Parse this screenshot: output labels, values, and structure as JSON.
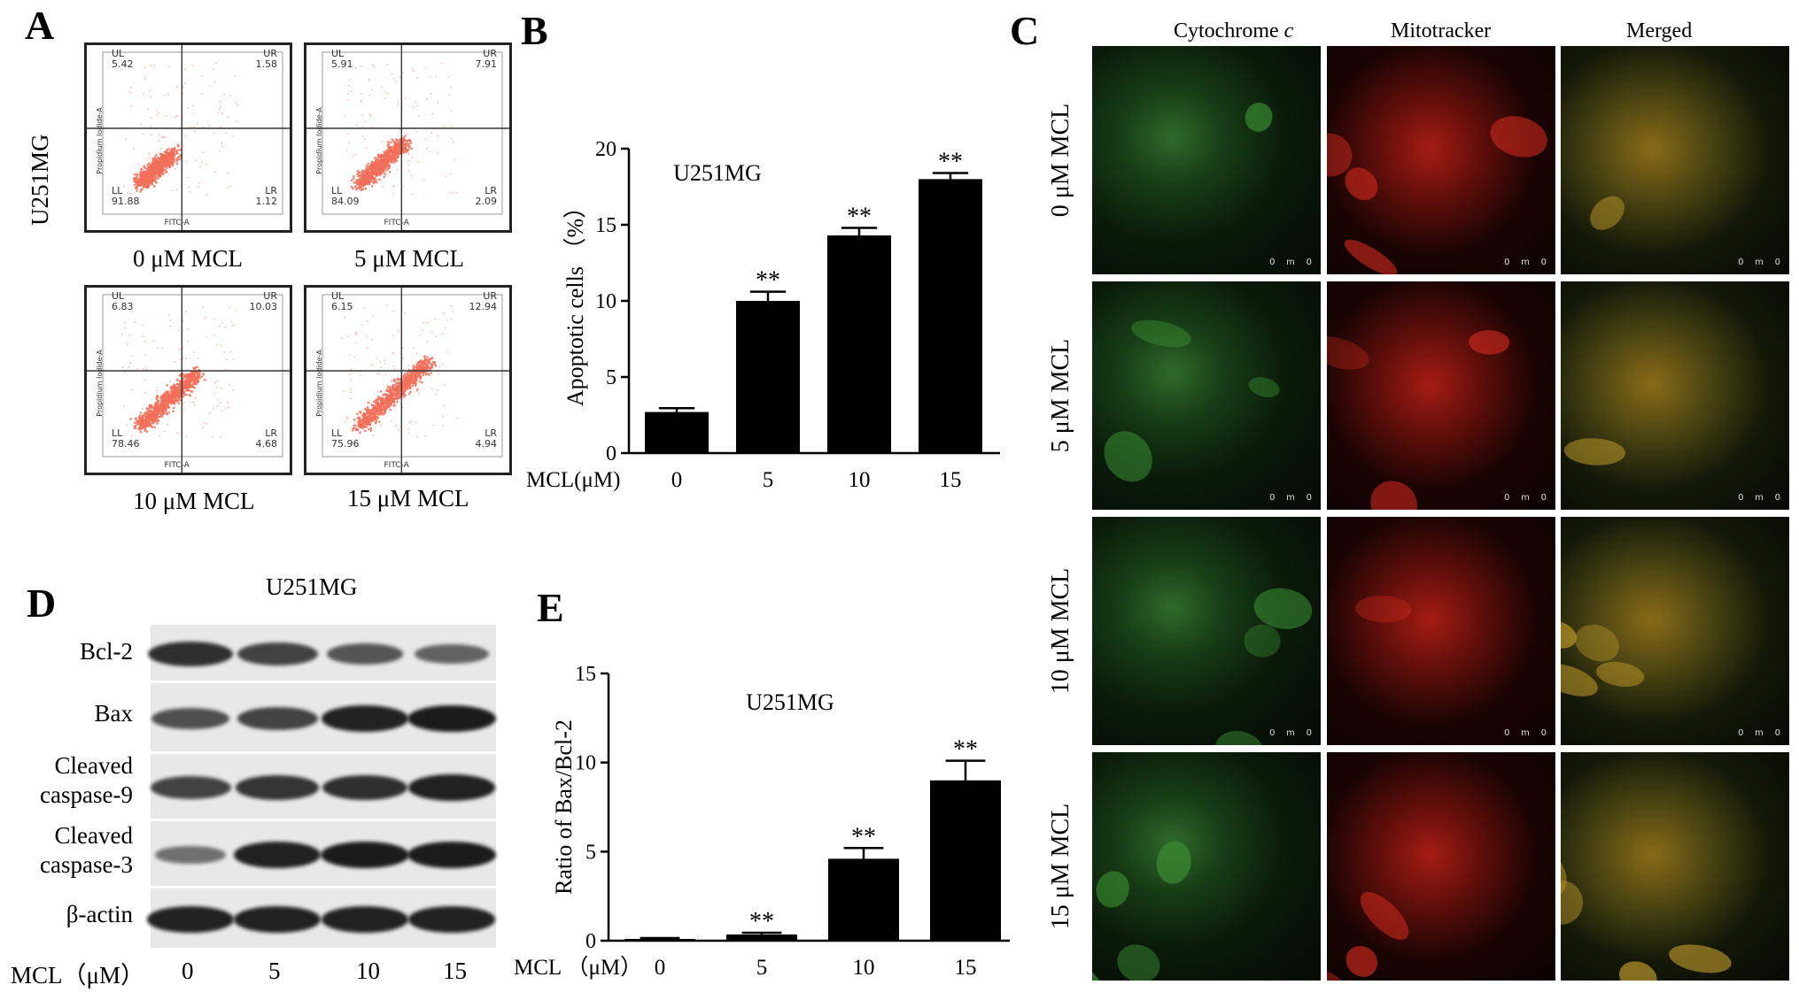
{
  "panels": {
    "A": {
      "letter": "A",
      "cell_line": "U251MG",
      "plots": [
        {
          "caption": "0 μM MCL",
          "UL": "5.42",
          "UR": "1.58",
          "LL": "91.88",
          "LR": "1.12"
        },
        {
          "caption": "5 μM MCL",
          "UL": "5.91",
          "UR": "7.91",
          "LL": "84.09",
          "LR": "2.09"
        },
        {
          "caption": "10 μM MCL",
          "UL": "6.83",
          "UR": "10.03",
          "LL": "78.46",
          "LR": "4.68"
        },
        {
          "caption": "15 μM MCL",
          "UL": "6.15",
          "UR": "12.94",
          "LL": "75.96",
          "LR": "4.94"
        }
      ],
      "quadrant_names": {
        "ul": "UL",
        "ur": "UR",
        "ll": "LL",
        "lr": "LR"
      },
      "xlabel": "FITC-A",
      "ylabel": "Propidium Iodide-A",
      "dot_color": "#f2705a"
    },
    "B": {
      "letter": "B",
      "xprefix": "MCL(μM)",
      "sig": "**"
    },
    "C": {
      "letter": "C",
      "columns": [
        "Cytochrome c",
        "Mitotracker",
        "Merged"
      ],
      "column_italic": "c",
      "rows": [
        "0 μM MCL",
        "5 μM MCL",
        "10 μM MCL",
        "15 μM MCL"
      ],
      "scale_text": "0    m    0"
    },
    "D": {
      "letter": "D",
      "title": "U251MG",
      "proteins": [
        {
          "label": "Bcl-2",
          "intensity": [
            0.85,
            0.7,
            0.55,
            0.45
          ]
        },
        {
          "label": "Bax",
          "intensity": [
            0.6,
            0.7,
            0.95,
            1.0
          ]
        },
        {
          "label": "Cleaved caspase-9",
          "intensity": [
            0.7,
            0.8,
            0.85,
            0.95
          ]
        },
        {
          "label": "Cleaved caspase-3",
          "intensity": [
            0.35,
            0.95,
            1.0,
            1.0
          ]
        },
        {
          "label": "β-actin",
          "intensity": [
            0.95,
            0.95,
            0.95,
            0.95
          ]
        }
      ],
      "xprefix": "MCL（μM）",
      "doses": [
        "0",
        "5",
        "10",
        "15"
      ]
    },
    "E": {
      "letter": "E",
      "xprefix": "MCL （μM）",
      "sig": "**"
    }
  },
  "chart_data": [
    {
      "type": "bar",
      "title": "U251MG",
      "categories": [
        "0",
        "5",
        "10",
        "15"
      ],
      "values": [
        2.7,
        10.0,
        14.3,
        18.0
      ],
      "errors": [
        0.25,
        0.6,
        0.5,
        0.4
      ],
      "significance": [
        "",
        "**",
        "**",
        "**"
      ],
      "xlabel": "MCL(μM)",
      "ylabel": "Apoptotic cells （%）",
      "ylim": [
        0,
        20
      ],
      "yticks": [
        0,
        5,
        10,
        15,
        20
      ]
    },
    {
      "type": "bar",
      "title": "U251MG",
      "categories": [
        "0",
        "5",
        "10",
        "15"
      ],
      "values": [
        0.1,
        0.35,
        4.6,
        9.0
      ],
      "errors": [
        0.05,
        0.1,
        0.6,
        1.1
      ],
      "significance": [
        "",
        "**",
        "**",
        "**"
      ],
      "xlabel": "MCL （μM）",
      "ylabel": "Ratio of Bax/Bcl-2",
      "ylim": [
        0,
        15
      ],
      "yticks": [
        0,
        5,
        10,
        15
      ]
    }
  ]
}
